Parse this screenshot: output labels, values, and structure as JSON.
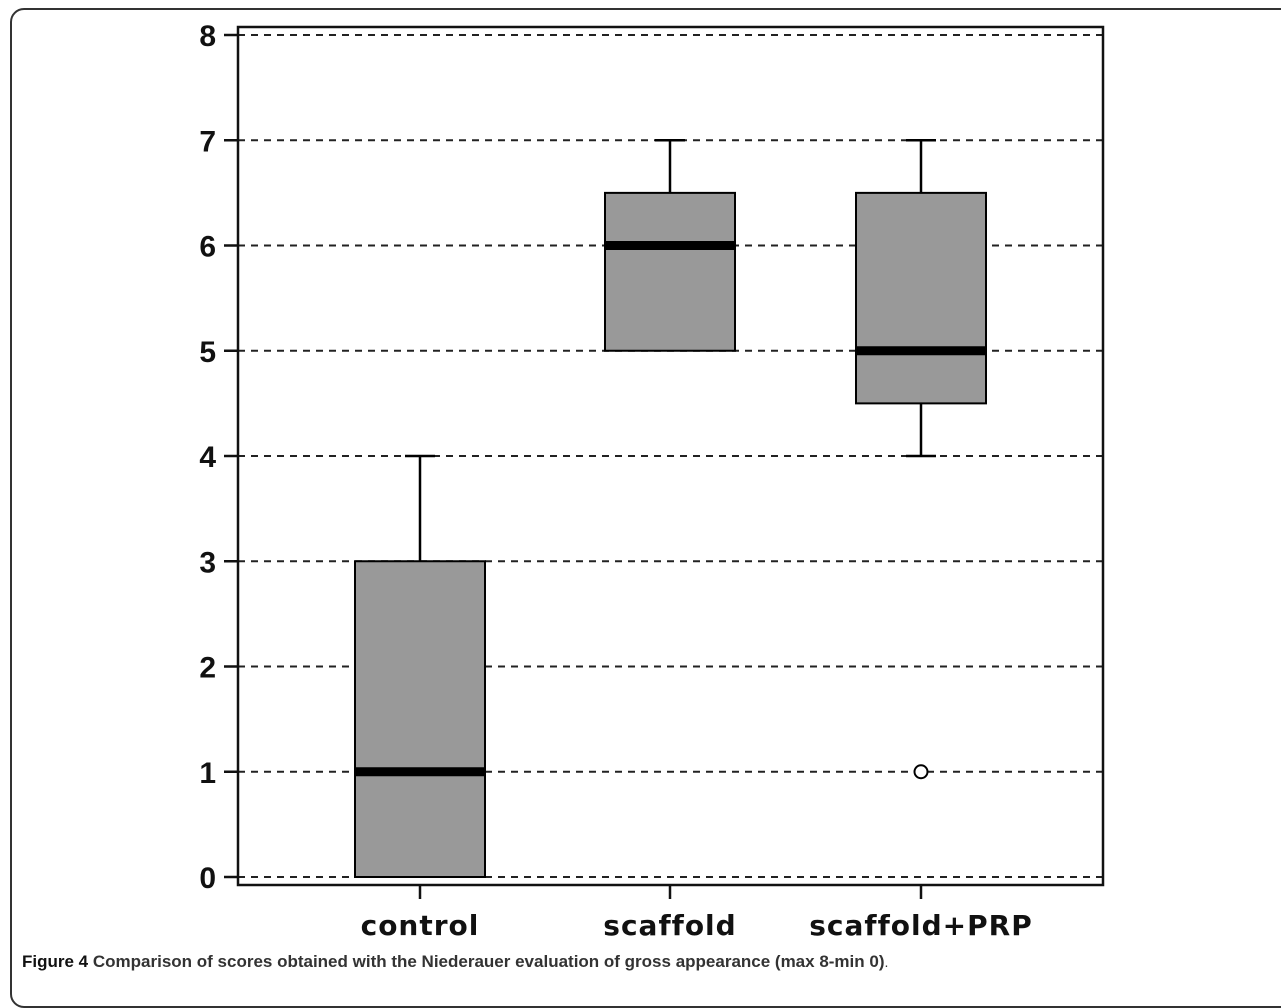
{
  "caption": {
    "label": "Figure 4",
    "text": "Comparison of scores obtained with the Niederauer evaluation of gross appearance (max 8-min 0)",
    "end": "."
  },
  "colors": {
    "box_fill": "#999999",
    "median": "#000000",
    "grid": "#222222",
    "axis": "#111111"
  },
  "chart_data": {
    "type": "boxplot",
    "title": "",
    "xlabel": "",
    "ylabel": "",
    "ylim": [
      0,
      8
    ],
    "yticks": [
      0,
      1,
      2,
      3,
      4,
      5,
      6,
      7,
      8
    ],
    "grid": "horizontal dashed",
    "categories": [
      "control",
      "scaffold",
      "scaffold+PRP"
    ],
    "boxes": [
      {
        "category": "control",
        "whisker_low": 0,
        "q1": 0,
        "median": 1,
        "q3": 3,
        "whisker_high": 4,
        "outliers": []
      },
      {
        "category": "scaffold",
        "whisker_low": 5,
        "q1": 5,
        "median": 6,
        "q3": 6.5,
        "whisker_high": 7,
        "outliers": []
      },
      {
        "category": "scaffold+PRP",
        "whisker_low": 4,
        "q1": 4.5,
        "median": 5,
        "q3": 6.5,
        "whisker_high": 7,
        "outliers": [
          1
        ]
      }
    ]
  }
}
